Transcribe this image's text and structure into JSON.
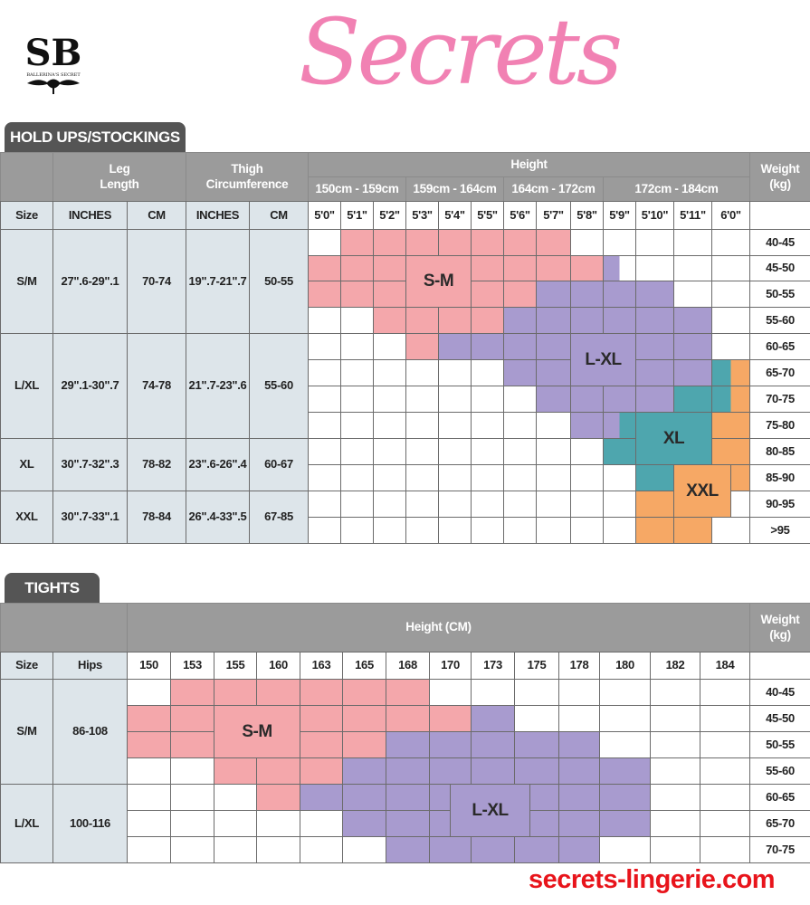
{
  "logo": {
    "monogram": "SB",
    "name": "BALLERINA'S SECRET"
  },
  "colors": {
    "S-M": "#f4a7ab",
    "L-XL": "#a89bcf",
    "XL": "#4ea6ae",
    "XXL": "#f6a865",
    "header": "#9b9b9b",
    "tab": "#555555",
    "light": "#dde5ea"
  },
  "stockings": {
    "tab": "HOLD UPS/STOCKINGS",
    "headers": {
      "leg_length": "Leg\nLength",
      "thigh": "Thigh\nCircumference",
      "height": "Height",
      "weight": "Weight\n(kg)",
      "size": "Size",
      "inches": "INCHES",
      "cm": "CM"
    },
    "height_ranges": [
      "150cm - 159cm",
      "159cm - 164cm",
      "164cm - 172cm",
      "172cm - 184cm"
    ],
    "heights": [
      "5'0\"",
      "5'1\"",
      "5'2\"",
      "5'3\"",
      "5'4\"",
      "5'5\"",
      "5'6\"",
      "5'7\"",
      "5'8\"",
      "5'9\"",
      "5'10\"",
      "5'11\"",
      "6'0\""
    ],
    "weights": [
      "40-45",
      "45-50",
      "50-55",
      "55-60",
      "60-65",
      "65-70",
      "70-75",
      "75-80",
      "80-85",
      "85-90",
      "90-95",
      ">95"
    ],
    "sizes": [
      {
        "size": "S/M",
        "leg_in": "27\".6-29\".1",
        "leg_cm": "70-74",
        "thigh_in": "19\".7-21\".7",
        "thigh_cm": "50-55"
      },
      {
        "size": "L/XL",
        "leg_in": "29\".1-30\".7",
        "leg_cm": "74-78",
        "thigh_in": "21\".7-23\".6",
        "thigh_cm": "55-60"
      },
      {
        "size": "XL",
        "leg_in": "30\".7-32\".3",
        "leg_cm": "78-82",
        "thigh_in": "23\".6-26\".4",
        "thigh_cm": "60-67"
      },
      {
        "size": "XXL",
        "leg_in": "30\".7-33\".1",
        "leg_cm": "78-84",
        "thigh_in": "26\".4-33\".5",
        "thigh_cm": "67-85"
      }
    ],
    "grid": [
      ". P P P P P P P . . . . .",
      "P P P P P P P P P L/. . . .",
      "P P P P P P P L L L L . .",
      ". . P P P P L L L L L L .",
      ". . . P L L L L L L L L .",
      ". . . . . . L L L L L L T/O",
      ". . . . . . . L L L L T T/O",
      ". . . . . . . . L L/T T T O",
      ". . . . . . . . . T T T O",
      ". . . . . . . . . . T O O",
      ". . . . . . . . . . O O O/.",
      ". . . . . . . . . . O O ."
    ],
    "zone_labels": [
      "S-M",
      "L-XL",
      "XL",
      "XXL"
    ]
  },
  "tights": {
    "tab": "TIGHTS",
    "headers": {
      "height": "Height (CM)",
      "weight": "Weight\n(kg)",
      "size": "Size",
      "hips": "Hips"
    },
    "heights": [
      "150",
      "153",
      "155",
      "160",
      "163",
      "165",
      "168",
      "170",
      "173",
      "175",
      "178",
      "180",
      "182",
      "184"
    ],
    "weights": [
      "40-45",
      "45-50",
      "50-55",
      "55-60",
      "60-65",
      "65-70",
      "70-75"
    ],
    "sizes": [
      {
        "size": "S/M",
        "hips": "86-108"
      },
      {
        "size": "L/XL",
        "hips": "100-116"
      }
    ],
    "grid": [
      ". P P P P P P . . . . . . .",
      "P P P P P P P P L . . . . .",
      "P P P P P P L L L L L . . .",
      ". . P P P L L L L L L L . .",
      ". . . P L L L L L L L L . .",
      ". . . . . L L L L L L L . .",
      ". . . . . . L L L L L . . ."
    ],
    "zone_labels": [
      "S-M",
      "L-XL"
    ]
  },
  "watermark": {
    "text": "Secrets",
    "site": "secrets-lingerie.com"
  }
}
